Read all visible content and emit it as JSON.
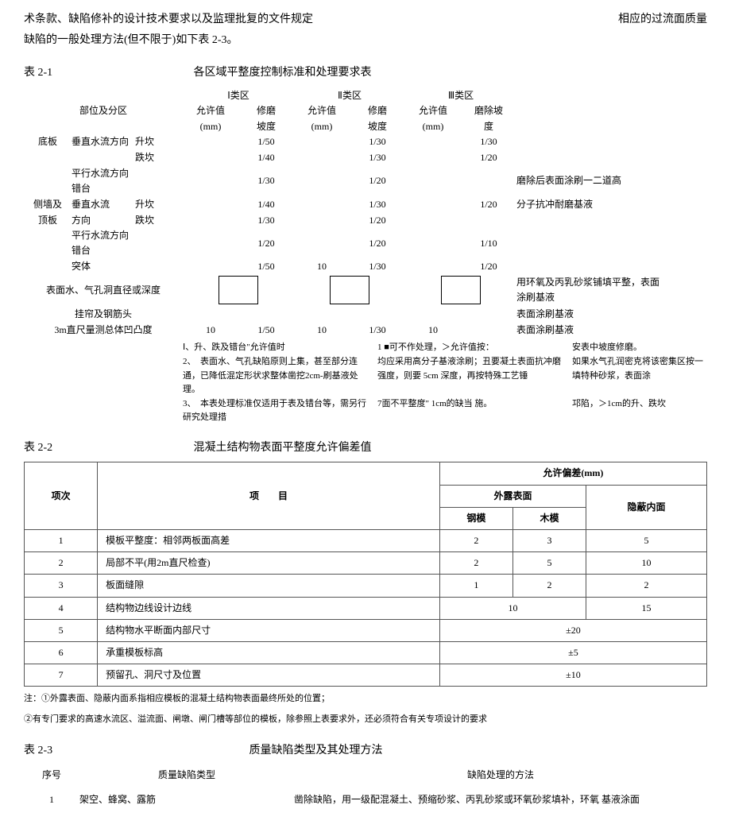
{
  "intro": {
    "line1_left": "术条款、缺陷修补的设计技术要求以及监理批复的文件规定",
    "line1_right": "相应的过流面质量",
    "line2": "缺陷的一般处理方法(但不限于)如下表 2-3。"
  },
  "t21": {
    "label": "表 2-1",
    "title": "各区域平整度控制标准和处理要求表",
    "zones": [
      "Ⅰ类区",
      "Ⅱ类区",
      "Ⅲ类区"
    ],
    "sub_allow": "允许值(mm)",
    "sub_allow_line1": "允许值",
    "sub_allow_line2": "(mm)",
    "sub_slope": "修磨坡度",
    "sub_slope_line1": "修磨",
    "sub_slope_line2": "坡度",
    "sub_slope3_line1": "磨除坡",
    "sub_slope3_line2": "度",
    "rowhdr_region": "部位及分区",
    "rows": [
      {
        "g": "底板",
        "a": "垂直水流方向",
        "b": "升坎",
        "z1s": "1/50",
        "z2s": "1/30",
        "z3s": "1/30",
        "rem": ""
      },
      {
        "g": "",
        "a": "",
        "b": "跌坎",
        "z1s": "1/40",
        "z2s": "1/30",
        "z3s": "1/20",
        "rem": ""
      },
      {
        "g": "",
        "a": "平行水流方向错台",
        "b": "",
        "z1s": "1/30",
        "z2s": "1/20",
        "z3s": "",
        "rem": "磨除后表面涂刷一二道高"
      },
      {
        "g": "侧墙及",
        "a": "垂直水流",
        "b": "升坎",
        "z1s": "1/40",
        "z2s": "1/30",
        "z3s": "1/20",
        "rem": "分子抗冲耐磨基液"
      },
      {
        "g": "顶板",
        "a": "方向",
        "b": "跌坎",
        "z1s": "1/30",
        "z2s": "1/20",
        "z3s": "",
        "rem": ""
      },
      {
        "g": "",
        "a": "平行水流方向错台",
        "b": "",
        "z1s": "1/20",
        "z2s": "1/20",
        "z3s": "1/10",
        "rem": ""
      },
      {
        "g": "",
        "a": "突体",
        "b": "",
        "z1s": "1/50",
        "z2s": "1/30",
        "z2a": "10",
        "z3s": "1/20",
        "rem": ""
      }
    ],
    "row_surface": {
      "label": "表面水、气孔洞直径或深度",
      "rem": "用环氧及丙乳砂浆铺填平整，表面涂刷基液"
    },
    "row_rebar": {
      "label": "挂帘及钢筋头",
      "rem": "表面涂刷基液"
    },
    "row_3m": {
      "label": "3m直尺量测总体凹凸度",
      "z1a": "10",
      "z1s": "1/50",
      "z2a": "10",
      "z2s": "1/30",
      "z3a": "10",
      "rem": "表面涂刷基液"
    },
    "notes_col1": "Ⅰ、升、跌及错台\"允许值时\n2、　表面水、气孔缺陷原则上集，甚至部分连通，已降低混定形状求整体凿挖2cm-刷基液处理。\n3、　本表处理标准仅适用于表及错台等，需另行研究处理措",
    "notes_col2": "1 ■可不作处理，＞允许值按：\n均应采用高分子基液涂刷；丑要凝土表面抗冲磨强度，则要 5cm 深度，再按特殊工艺锤\n\n7面不平整度\" 1cm的缺当 施。",
    "notes_col3": "安表中坡度修磨。\n如果水气孔润密克将该密集区按一填特种砂浆，表面涂\n\n邛陷，＞1cm的升、跌坎"
  },
  "t22": {
    "label": "表 2-2",
    "title": "混凝土结构物表面平整度允许偏差值",
    "hdr_no": "项次",
    "hdr_item": "项　　目",
    "hdr_tol": "允许偏差(mm)",
    "hdr_exposed": "外露表面",
    "hdr_hidden": "隐蔽内面",
    "hdr_steel": "钢模",
    "hdr_wood": "木模",
    "rows": [
      {
        "no": "1",
        "item": "模板平整度：相邻两板面高差",
        "steel": "2",
        "wood": "3",
        "hidden": "5"
      },
      {
        "no": "2",
        "item": "局部不平(用2m直尺检查)",
        "steel": "2",
        "wood": "5",
        "hidden": "10"
      },
      {
        "no": "3",
        "item": "板面缝隙",
        "steel": "1",
        "wood": "2",
        "hidden": "2"
      },
      {
        "no": "4",
        "item": "结构物边线设计边线",
        "span2": "10",
        "hidden": "15"
      },
      {
        "no": "5",
        "item": "结构物水平断面内部尺寸",
        "span3": "±20"
      },
      {
        "no": "6",
        "item": "承重模板标高",
        "span3": "±5"
      },
      {
        "no": "7",
        "item": "预留孔、洞尺寸及位置",
        "span3": "±10"
      }
    ],
    "note1": "注：①外露表面、隐蔽内面系指相应模板的混凝土结构物表面最终所处的位置；",
    "note2": "②有专门要求的高速水流区、溢流面、闸墩、闸门槽等部位的模板，除参照上表要求外，还必须符合有关专项设计的要求"
  },
  "t23": {
    "label": "表 2-3",
    "title": "质量缺陷类型及其处理方法",
    "hdr_no": "序号",
    "hdr_type": "质量缺陷类型",
    "hdr_method": "缺陷处理的方法",
    "rows": [
      {
        "no": "1",
        "type": "架空、蜂窝、露筋",
        "method": "凿除缺陷，用一级配混凝土、预缩砂浆、丙乳砂浆或环氧砂浆填补，环氧 基液涂面"
      }
    ]
  }
}
